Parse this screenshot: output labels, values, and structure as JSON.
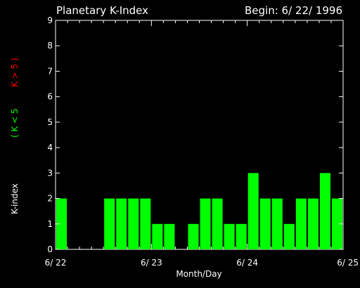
{
  "chart_data": {
    "type": "bar",
    "title": "Planetary K-Index",
    "subtitle": "Begin: 6/ 22/ 1996",
    "xlabel": "Month/Day",
    "ylabel": "K-index",
    "legend": {
      "green": "( K < 5",
      "red": "K > 5 )"
    },
    "colors": {
      "low": "#00ff00",
      "high": "#ff0000",
      "axes": "#ffffff",
      "background": "#000000"
    },
    "ylim": [
      0,
      9
    ],
    "yticks": [
      "0",
      "1",
      "2",
      "3",
      "4",
      "5",
      "6",
      "7",
      "8",
      "9"
    ],
    "xticks": [
      {
        "label": "6/ 22",
        "day": 0
      },
      {
        "label": "6/ 23",
        "day": 1
      },
      {
        "label": "6/ 24",
        "day": 2
      },
      {
        "label": "6/ 25",
        "day": 3
      }
    ],
    "interval_hours": 3,
    "values": [
      2,
      0,
      0,
      0,
      2,
      2,
      2,
      2,
      1,
      1,
      0,
      1,
      2,
      2,
      1,
      1,
      3,
      2,
      2,
      1,
      2,
      2,
      3,
      2
    ]
  }
}
